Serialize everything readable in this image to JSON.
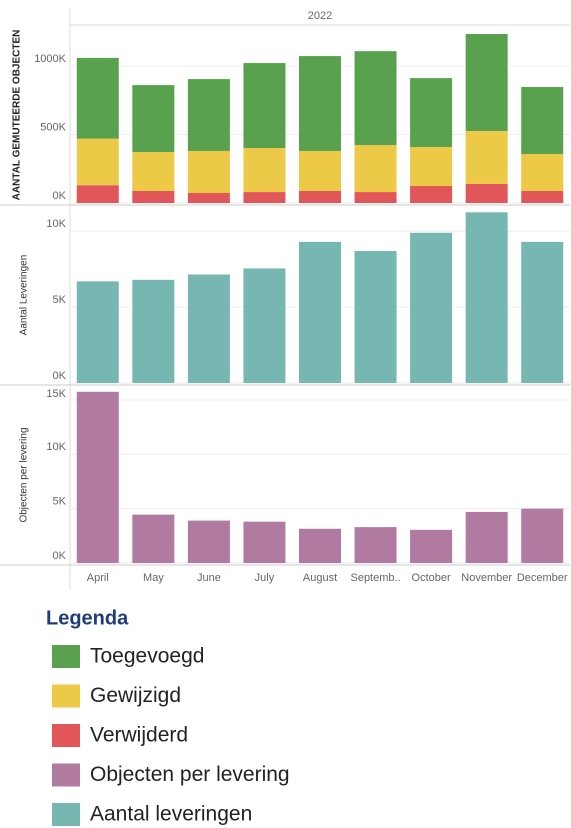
{
  "chart_data": [
    {
      "type": "stacked_bar",
      "subtitle": "2022",
      "y_label": "AANTAL GEMUTEERDE OBJECTEN",
      "series": [
        {
          "name": "Toegevoegd",
          "color": "#59a14f",
          "values": [
            590000,
            489000,
            525000,
            621000,
            693000,
            686000,
            503000,
            708000,
            489000
          ]
        },
        {
          "name": "Gewijzigd",
          "color": "#edc948",
          "values": [
            340000,
            284000,
            307000,
            321000,
            292000,
            343000,
            285000,
            387000,
            270000
          ]
        },
        {
          "name": "Verwijderd",
          "color": "#e15759",
          "values": [
            130000,
            88000,
            73000,
            80000,
            88000,
            80000,
            124000,
            139000,
            88000
          ]
        }
      ],
      "ylim": [
        0,
        1300000
      ],
      "yticks": [
        {
          "value": 0,
          "label": "0K"
        },
        {
          "value": 500000,
          "label": "500K"
        },
        {
          "value": 1000000,
          "label": "1000K"
        }
      ],
      "grid": true
    },
    {
      "type": "bar",
      "y_label": "Aantal Leveringen",
      "series": [
        {
          "name": "Aantal leveringen",
          "color": "#76b7b2",
          "values": [
            6700,
            6800,
            7150,
            7550,
            9300,
            8700,
            9900,
            11250,
            9300
          ]
        }
      ],
      "ylim": [
        0,
        11600
      ],
      "yticks": [
        {
          "value": 0,
          "label": "0K"
        },
        {
          "value": 5000,
          "label": "5K"
        },
        {
          "value": 10000,
          "label": "10K"
        }
      ],
      "grid": true
    },
    {
      "type": "bar",
      "y_label": "Objecten per levering",
      "categories": [
        "April",
        "May",
        "June",
        "July",
        "August",
        "Septemb..",
        "October",
        "November",
        "December"
      ],
      "series": [
        {
          "name": "Objecten per levering",
          "color": "#b07aa1",
          "values": [
            15750,
            4450,
            3900,
            3800,
            3150,
            3300,
            3050,
            4700,
            5000
          ]
        }
      ],
      "ylim": [
        0,
        16100
      ],
      "yticks": [
        {
          "value": 0,
          "label": "0K"
        },
        {
          "value": 5000,
          "label": "5K"
        },
        {
          "value": 10000,
          "label": "10K"
        },
        {
          "value": 15000,
          "label": "15K"
        }
      ],
      "grid": true
    }
  ],
  "legend": {
    "title": "Legenda"
  }
}
